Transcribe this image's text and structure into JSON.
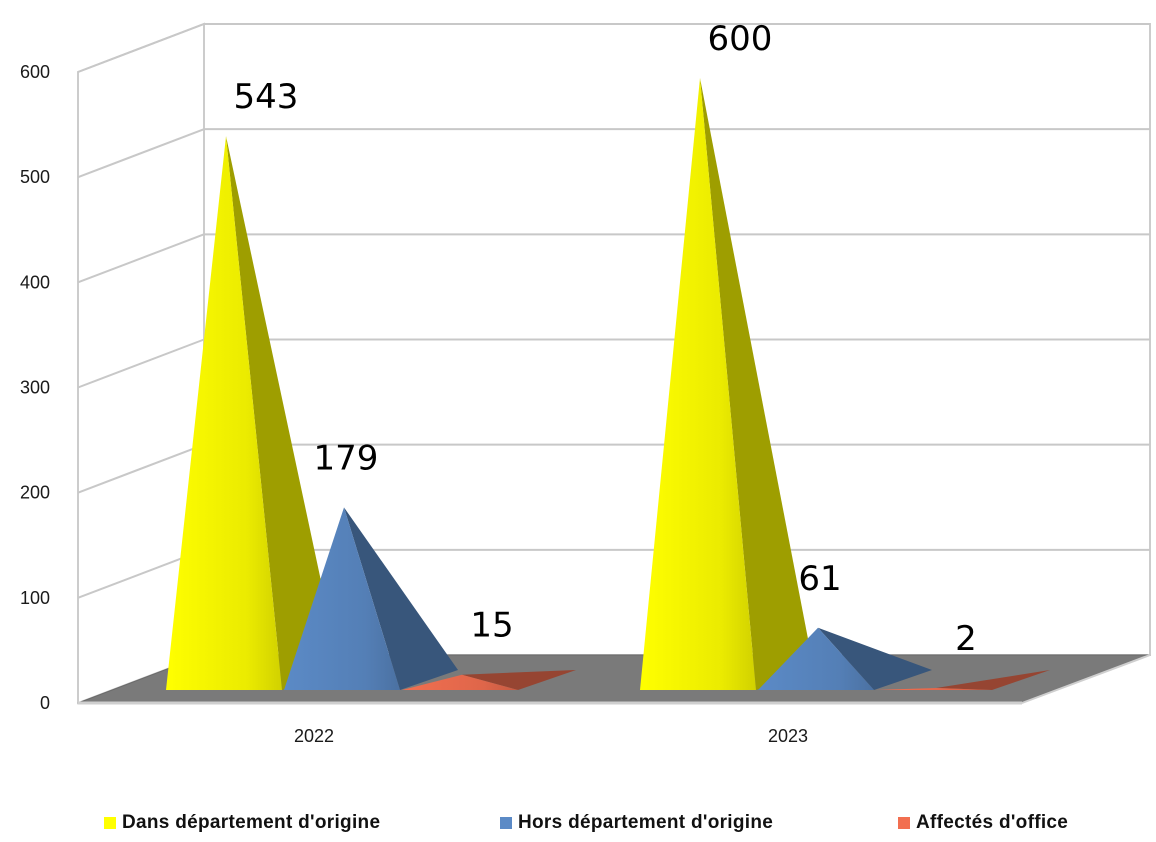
{
  "chart_data": {
    "type": "bar",
    "style": "3d-pyramid",
    "categories": [
      "2022",
      "2023"
    ],
    "series": [
      {
        "name": "Dans département d'origine",
        "values": [
          543,
          600
        ],
        "color": "#ffff00"
      },
      {
        "name": "Hors département d'origine",
        "values": [
          179,
          61
        ],
        "color": "#5b8ac6"
      },
      {
        "name": "Affectés d'office",
        "values": [
          15,
          2
        ],
        "color": "#f26f50"
      }
    ],
    "data_labels": [
      [
        "543",
        "600"
      ],
      [
        "179",
        "61"
      ],
      [
        "15",
        "2"
      ]
    ],
    "y_ticks": [
      "0",
      "100",
      "200",
      "300",
      "400",
      "500",
      "600"
    ],
    "ylim": [
      0,
      600
    ],
    "grid": true,
    "legend_position": "bottom",
    "title": "",
    "xlabel": "",
    "ylabel": ""
  }
}
